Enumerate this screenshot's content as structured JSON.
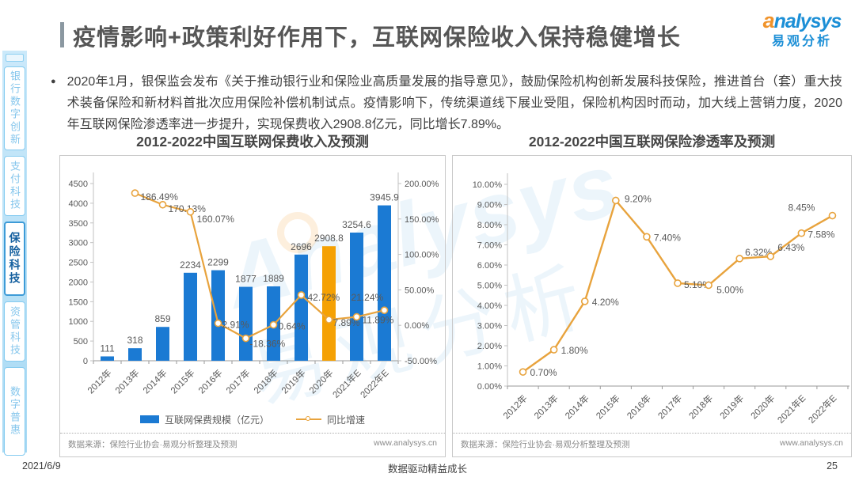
{
  "header": {
    "title": "疫情影响+政策利好作用下，互联网保险收入保持稳健增长",
    "logo": {
      "brand_first_letter": "a",
      "brand_rest": "nalysys",
      "brand_cn": "易观分析"
    }
  },
  "sidebar": {
    "items": [
      {
        "label": "银行数字创新",
        "active": false
      },
      {
        "label": "支付科技",
        "active": false
      },
      {
        "label": "保险科技",
        "active": true
      },
      {
        "label": "资管科技",
        "active": false
      },
      {
        "label": "数字普惠",
        "active": false
      }
    ]
  },
  "bullet": {
    "text": "2020年1月，银保监会发布《关于推动银行业和保险业高质量发展的指导意见》，鼓励保险机构创新发展科技保险，推进首台（套）重大技术装备保险和新材料首批次应用保险补偿机制试点。疫情影响下，传统渠道线下展业受阻，保险机构因时而动，加大线上营销力度，2020年互联网保险渗透率进一步提升，实现保费收入2908.8亿元，同比增长7.89%。"
  },
  "colors": {
    "bar_blue": "#1B7AD3",
    "bar_highlight_orange": "#F5A104",
    "line_orange": "#E8A33D",
    "axis_gray": "#595959",
    "brand_blue": "#1C8FD6",
    "brand_orange": "#F0932B"
  },
  "chart_data": [
    {
      "type": "bar",
      "title": "2012-2022中国互联网保费收入及预测",
      "categories": [
        "2012年",
        "2013年",
        "2014年",
        "2015年",
        "2016年",
        "2017年",
        "2018年",
        "2019年",
        "2020年",
        "2021年E",
        "2022年E"
      ],
      "series": [
        {
          "name": "互联网保费规模（亿元）",
          "type": "bar",
          "values": [
            111,
            318,
            859,
            2234,
            2299,
            1877,
            1889,
            2696,
            2908.8,
            3254.6,
            3945.9
          ],
          "labels": [
            "111",
            "318",
            "859",
            "2234",
            "2299",
            "1877",
            "1889",
            "2696",
            "2908.8",
            "3254.6",
            "3945.9"
          ],
          "color": "#1B7AD3",
          "highlight_index": 8,
          "highlight_color": "#F5A104"
        },
        {
          "name": "同比增速",
          "type": "line",
          "values": [
            null,
            186.49,
            170.13,
            160.07,
            2.91,
            -18.36,
            0.64,
            42.72,
            7.89,
            11.89,
            21.24
          ],
          "labels": [
            null,
            "186.49%",
            "170.13%",
            "160.07%",
            "2.91%",
            "-18.36%",
            "0.64%",
            "42.72%",
            "7.89%",
            "11.89%",
            "21.24%"
          ],
          "color": "#E8A33D",
          "label_offsets": [
            [
              0,
              0
            ],
            [
              7,
              9
            ],
            [
              7,
              9
            ],
            [
              8,
              13
            ],
            [
              5,
              6
            ],
            [
              5,
              11
            ],
            [
              6,
              6
            ],
            [
              8,
              7
            ],
            [
              5,
              8
            ],
            [
              7,
              8
            ],
            [
              -42,
              -12
            ]
          ]
        }
      ],
      "y1": {
        "min": 0,
        "max": 4500,
        "step": 500
      },
      "y2": {
        "min": -50,
        "max": 200,
        "step": 50,
        "format": "percent"
      },
      "grid": false,
      "legend_position": "bottom",
      "source": "数据来源：保险行业协会·易观分析整理及预测",
      "site": "www.analysys.cn"
    },
    {
      "type": "line",
      "title": "2012-2022中国互联网保险渗透率及预测",
      "categories": [
        "2012年",
        "2013年",
        "2014年",
        "2015年",
        "2016年",
        "2017年",
        "2018年",
        "2019年",
        "2020年",
        "2021年E",
        "2022年E"
      ],
      "series": [
        {
          "name": "互联网保险渗透率",
          "type": "line",
          "values": [
            0.7,
            1.8,
            4.2,
            9.2,
            7.4,
            5.1,
            5.0,
            6.32,
            6.43,
            7.58,
            8.45
          ],
          "labels": [
            "0.70%",
            "1.80%",
            "4.20%",
            "9.20%",
            "7.40%",
            "5.10%",
            "5.00%",
            "6.32%",
            "6.43%",
            "7.58%",
            "8.45%"
          ],
          "color": "#E8A33D",
          "label_offsets": [
            [
              9,
              5
            ],
            [
              9,
              5
            ],
            [
              9,
              5
            ],
            [
              11,
              2
            ],
            [
              9,
              5
            ],
            [
              8,
              6
            ],
            [
              10,
              10
            ],
            [
              7,
              -4
            ],
            [
              9,
              -7
            ],
            [
              8,
              6
            ],
            [
              -56,
              -6
            ]
          ]
        }
      ],
      "y": {
        "min": 0,
        "max": 10,
        "step": 1,
        "format": "percent"
      },
      "grid": false,
      "legend_position": "none",
      "source": "数据来源：保险行业协会·易观分析整理及预测",
      "site": "www.analysys.cn"
    }
  ],
  "watermark": {
    "line1": "Analysys",
    "line2": "易观分析"
  },
  "page_footer": {
    "date": "2021/6/9",
    "slogan": "数据驱动精益成长",
    "page": "25"
  }
}
